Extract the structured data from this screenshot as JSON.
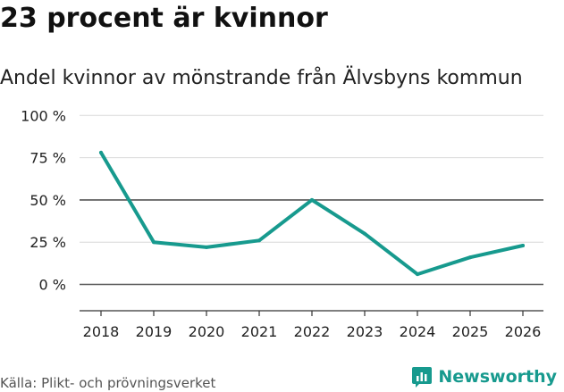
{
  "title": "23 procent är kvinnor",
  "source": "Källa: Plikt- och prövningsverket",
  "brand": {
    "name": "Newsworthy"
  },
  "colors": {
    "line": "#179a8e",
    "brand": "#179a8e"
  },
  "chart_data": {
    "type": "line",
    "title": "Andel kvinnor av mönstrande från Älvsbyns kommun",
    "xlabel": "",
    "ylabel": "",
    "ylim": [
      -15,
      100
    ],
    "yticks": [
      0,
      25,
      50,
      75,
      100
    ],
    "ytick_labels": [
      "0 %",
      "25 %",
      "50 %",
      "75 %",
      "100 %"
    ],
    "categories": [
      "2018",
      "2019",
      "2020",
      "2021",
      "2022",
      "2023",
      "2024",
      "2025",
      "2026"
    ],
    "series": [
      {
        "name": "Andel kvinnor",
        "values": [
          78,
          25,
          22,
          26,
          50,
          30,
          6,
          16,
          23
        ]
      }
    ]
  }
}
